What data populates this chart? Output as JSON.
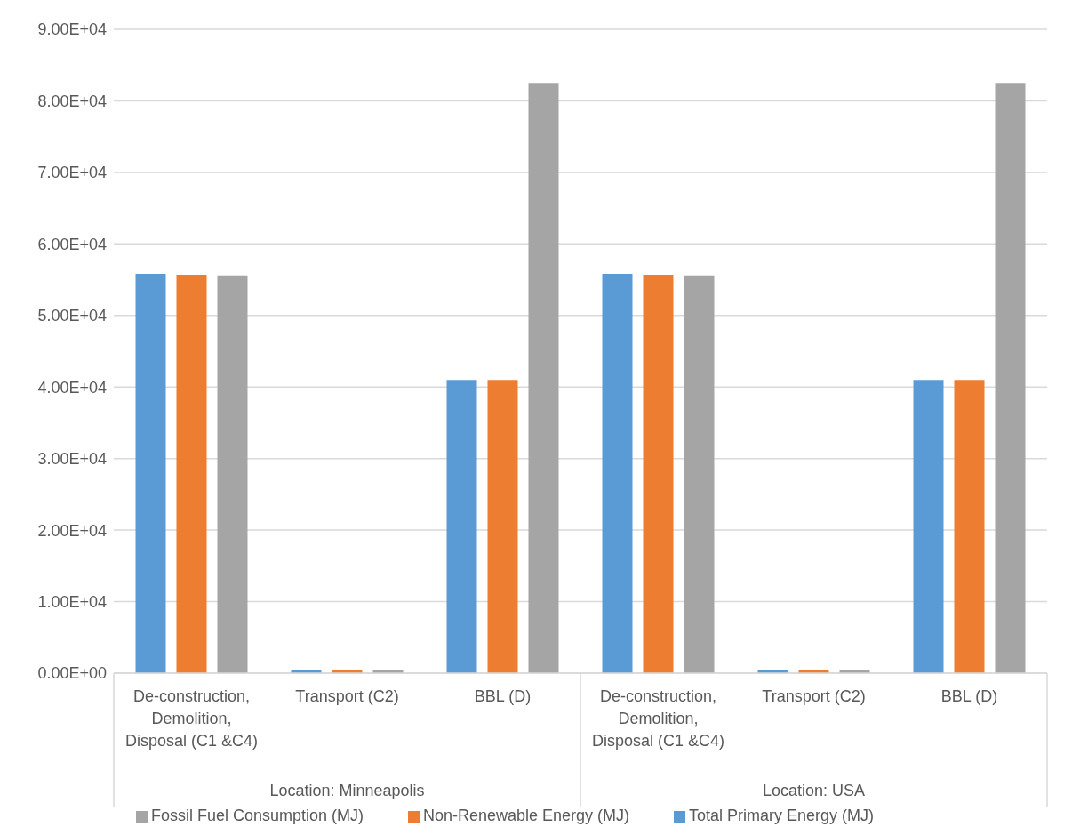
{
  "chart_data": {
    "type": "bar",
    "categories": [
      "De-construction, Demolition, Disposal (C1 &C4)",
      "Transport (C2)",
      "BBL (D)",
      "De-construction, Demolition, Disposal (C1 &C4)",
      "Transport (C2)",
      "BBL (D)"
    ],
    "annotations": [
      "Location: Minneapolis",
      "Location: USA"
    ],
    "series": [
      {
        "name": "Total Primary Energy (MJ)",
        "color": "#5b9bd5",
        "values": [
          55800,
          400,
          41000,
          55800,
          400,
          41000
        ]
      },
      {
        "name": "Non-Renewable Energy (MJ)",
        "color": "#ed7d31",
        "values": [
          55700,
          400,
          41000,
          55700,
          400,
          41000
        ]
      },
      {
        "name": "Fossil Fuel Consumption (MJ)",
        "color": "#a5a5a5",
        "values": [
          55600,
          400,
          82500,
          55600,
          400,
          82500
        ]
      }
    ],
    "ylim": [
      0,
      90000
    ],
    "yticks": [
      {
        "value": 0,
        "label": "0.00E+00"
      },
      {
        "value": 10000,
        "label": "1.00E+04"
      },
      {
        "value": 20000,
        "label": "2.00E+04"
      },
      {
        "value": 30000,
        "label": "3.00E+04"
      },
      {
        "value": 40000,
        "label": "4.00E+04"
      },
      {
        "value": 50000,
        "label": "5.00E+04"
      },
      {
        "value": 60000,
        "label": "6.00E+04"
      },
      {
        "value": 70000,
        "label": "7.00E+04"
      },
      {
        "value": 80000,
        "label": "8.00E+04"
      },
      {
        "value": 90000,
        "label": "9.00E+04"
      }
    ],
    "grid": "y",
    "legend": "bottom"
  }
}
